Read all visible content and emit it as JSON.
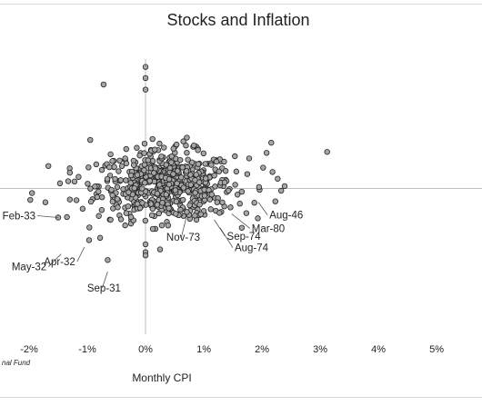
{
  "chart_data": {
    "type": "scatter",
    "title": "Stocks and Inflation",
    "xlabel": "Monthly CPI",
    "ylabel": "",
    "xlim": [
      -0.025,
      0.0578
    ],
    "ylim": [
      -0.3,
      0.29
    ],
    "x_ticks": [
      "-2%",
      "-1%",
      "0%",
      "1%",
      "2%",
      "3%",
      "4%",
      "5%"
    ],
    "x_tick_values": [
      -0.02,
      -0.01,
      0.0,
      0.01,
      0.02,
      0.03,
      0.04,
      0.05
    ],
    "source_text": "nal Fund",
    "grid": false,
    "legend": "none",
    "point_color": "#a6a6a6",
    "point_edge_color": "#222222",
    "axis_color": "#bfbfbf",
    "annotations": [
      {
        "label": "Aug-46",
        "x": 0.0194,
        "y": -0.03
      },
      {
        "label": "Mar-80",
        "x": 0.0148,
        "y": -0.055
      },
      {
        "label": "Sep-74",
        "x": 0.0118,
        "y": -0.068
      },
      {
        "label": "Aug-74",
        "x": 0.0128,
        "y": -0.085
      },
      {
        "label": "Nov-73",
        "x": 0.0071,
        "y": -0.058
      },
      {
        "label": "Feb-33",
        "x": -0.015,
        "y": -0.063
      },
      {
        "label": "May-32",
        "x": -0.0145,
        "y": -0.142
      },
      {
        "label": "Apr-32",
        "x": -0.0105,
        "y": -0.127
      },
      {
        "label": "Sep-31",
        "x": -0.0065,
        "y": -0.18
      }
    ],
    "series": [
      {
        "points": [
          [
            0.0,
            0.263
          ],
          [
            0.0,
            0.239
          ],
          [
            -0.0072,
            0.225
          ],
          [
            0.0,
            0.214
          ],
          [
            0.0216,
            0.099
          ],
          [
            0.0208,
            0.077
          ],
          [
            0.0312,
            0.079
          ],
          [
            0.001,
            0.082
          ],
          [
            0.0065,
            0.102
          ],
          [
            0.0012,
            0.107
          ],
          [
            0.0071,
            0.11
          ],
          [
            -0.0095,
            0.105
          ],
          [
            0.0024,
            0.097
          ],
          [
            0.0048,
            0.086
          ],
          [
            0.0083,
            0.093
          ],
          [
            -0.006,
            0.074
          ],
          [
            0.009,
            0.083
          ],
          [
            0.0016,
            0.084
          ],
          [
            -0.0035,
            0.065
          ],
          [
            0.0113,
            0.051
          ],
          [
            0.0135,
            0.058
          ],
          [
            0.0178,
            0.065
          ],
          [
            0.0202,
            0.045
          ],
          [
            0.0227,
            0.021
          ],
          [
            0.0239,
            0.005
          ],
          [
            0.0195,
            0.003
          ],
          [
            0.0233,
            -0.005
          ],
          [
            0.0223,
            -0.028
          ],
          [
            0.0187,
            -0.031
          ],
          [
            0.0162,
            -0.033
          ],
          [
            0.0146,
            -0.041
          ],
          [
            0.0123,
            -0.03
          ],
          [
            0.0112,
            -0.045
          ],
          [
            0.0127,
            -0.053
          ],
          [
            0.0095,
            -0.056
          ],
          [
            0.0071,
            -0.051
          ],
          [
            0.0057,
            -0.058
          ],
          [
            0.0093,
            -0.035
          ],
          [
            0.004,
            -0.043
          ],
          [
            0.0154,
            0.008
          ],
          [
            0.0136,
            0.013
          ],
          [
            -0.0195,
            -0.01
          ],
          [
            -0.0198,
            -0.025
          ],
          [
            -0.0172,
            -0.03
          ],
          [
            -0.015,
            -0.063
          ],
          [
            -0.0135,
            -0.062
          ],
          [
            -0.0097,
            -0.112
          ],
          [
            -0.0078,
            -0.107
          ],
          [
            -0.0065,
            -0.155
          ],
          [
            0.0,
            -0.121
          ],
          [
            0.0,
            -0.138
          ],
          [
            0.0,
            -0.145
          ],
          [
            0.0025,
            -0.132
          ],
          [
            -0.013,
            -0.024
          ],
          [
            -0.0108,
            -0.044
          ],
          [
            -0.0147,
            0.011
          ],
          [
            -0.0122,
            0.015
          ],
          [
            -0.013,
            0.034
          ],
          [
            -0.0115,
            0.025
          ],
          [
            -0.0075,
            0.04
          ],
          [
            -0.0062,
            0.046
          ],
          [
            -0.006,
            -0.068
          ],
          [
            -0.0035,
            -0.08
          ],
          [
            -0.0025,
            -0.062
          ],
          [
            0.0011,
            -0.058
          ],
          [
            0.0028,
            -0.08
          ],
          [
            0.0052,
            -0.055
          ]
        ]
      }
    ]
  }
}
